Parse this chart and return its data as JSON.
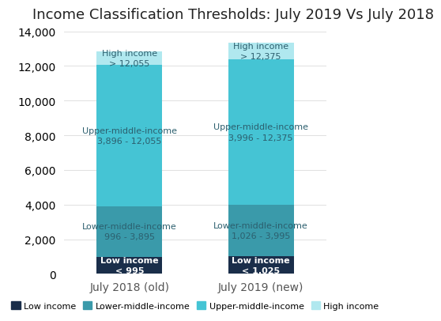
{
  "title": "Income Classification Thresholds: July 2019 Vs July 2018",
  "categories": [
    "July 2018 (old)",
    "July 2019 (new)"
  ],
  "segments": {
    "low_income": {
      "values": [
        995,
        1025
      ],
      "color": "#1a2e4a",
      "label": "Low income",
      "annotations": [
        "Low income\n< 995",
        "Low income\n< 1,025"
      ]
    },
    "lower_middle": {
      "values": [
        2900,
        2970
      ],
      "color": "#3a9aaa",
      "label": "Lower-middle-income",
      "annotations": [
        "Lower-middle-income\n996 - 3,895",
        "Lower-middle-income\n1,026 - 3,995"
      ]
    },
    "upper_middle": {
      "values": [
        8160,
        8380
      ],
      "color": "#45c4d4",
      "label": "Upper-middle-income",
      "annotations": [
        "Upper-middle-income\n3,896 - 12,055",
        "Upper-middle-income\n3,996 - 12,375"
      ]
    },
    "high_income": {
      "values": [
        800,
        950
      ],
      "color": "#b0e8ef",
      "label": "High income",
      "annotations": [
        "High income\n> 12,055",
        "High income\n> 12,375"
      ]
    }
  },
  "ylim": [
    0,
    14000
  ],
  "yticks": [
    0,
    2000,
    4000,
    6000,
    8000,
    10000,
    12000,
    14000
  ],
  "background_color": "#ffffff",
  "bar_width": 0.5,
  "title_fontsize": 13,
  "annotation_fontsize": 8,
  "legend_fontsize": 9,
  "axis_label_fontsize": 10
}
